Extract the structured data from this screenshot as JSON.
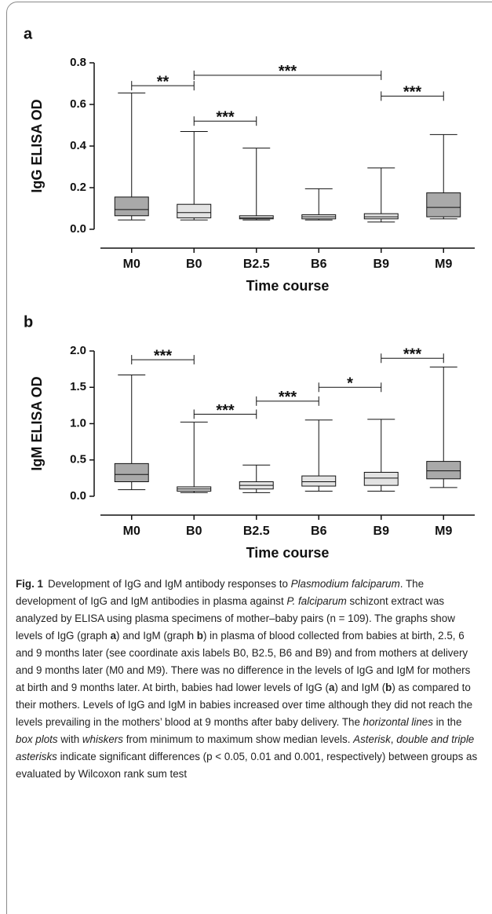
{
  "chart_data": [
    {
      "type": "box",
      "panel": "a",
      "ylabel": "IgG ELISA OD",
      "xlabel": "Time course",
      "categories": [
        "M0",
        "B0",
        "B2.5",
        "B6",
        "B9",
        "M9"
      ],
      "min": [
        0.045,
        0.045,
        0.045,
        0.045,
        0.035,
        0.05
      ],
      "q1": [
        0.065,
        0.055,
        0.05,
        0.05,
        0.05,
        0.06
      ],
      "median": [
        0.095,
        0.08,
        0.055,
        0.06,
        0.06,
        0.105
      ],
      "q3": [
        0.155,
        0.12,
        0.065,
        0.07,
        0.075,
        0.175
      ],
      "max": [
        0.655,
        0.47,
        0.39,
        0.195,
        0.295,
        0.455
      ],
      "colors": [
        "#a9a9a9",
        "#e3e3e3",
        "#e3e3e3",
        "#e3e3e3",
        "#e3e3e3",
        "#a9a9a9"
      ],
      "ylim": [
        0,
        0.8
      ],
      "yticks": [
        {
          "value": 0,
          "label": "0.0"
        },
        0.2,
        0.4,
        0.6,
        0.8
      ],
      "annotations": [
        {
          "label": "**",
          "from": "M0",
          "to": "B0",
          "y": 0.69
        },
        {
          "label": "***",
          "from": "B0",
          "to": "B9",
          "y": 0.74
        },
        {
          "label": "***",
          "from": "B9",
          "to": "M9",
          "y": 0.64
        },
        {
          "label": "***",
          "from": "B0",
          "to": "B2.5",
          "y": 0.52
        }
      ]
    },
    {
      "type": "box",
      "panel": "b",
      "ylabel": "IgM ELISA OD",
      "xlabel": "Time course",
      "categories": [
        "M0",
        "B0",
        "B2.5",
        "B6",
        "B9",
        "M9"
      ],
      "min": [
        0.09,
        0.05,
        0.05,
        0.07,
        0.07,
        0.12
      ],
      "q1": [
        0.2,
        0.07,
        0.1,
        0.14,
        0.15,
        0.24
      ],
      "median": [
        0.3,
        0.1,
        0.15,
        0.2,
        0.25,
        0.35
      ],
      "q3": [
        0.45,
        0.13,
        0.2,
        0.28,
        0.33,
        0.48
      ],
      "max": [
        1.67,
        1.02,
        0.43,
        1.05,
        1.06,
        1.78
      ],
      "colors": [
        "#a9a9a9",
        "#e3e3e3",
        "#e3e3e3",
        "#e3e3e3",
        "#e3e3e3",
        "#a9a9a9"
      ],
      "ylim": [
        0,
        2
      ],
      "yticks": [
        {
          "value": 0,
          "label": "0.0"
        },
        0.5,
        {
          "value": 1,
          "label": "1.0"
        },
        1.5,
        {
          "value": 2,
          "label": "2.0"
        }
      ],
      "annotations": [
        {
          "label": "***",
          "from": "M0",
          "to": "B0",
          "y": 1.88
        },
        {
          "label": "***",
          "from": "B0",
          "to": "B2.5",
          "y": 1.13
        },
        {
          "label": "***",
          "from": "B2.5",
          "to": "B6",
          "y": 1.31
        },
        {
          "label": "*",
          "from": "B6",
          "to": "B9",
          "y": 1.5
        },
        {
          "label": "***",
          "from": "B9",
          "to": "M9",
          "y": 1.9
        }
      ]
    }
  ],
  "caption": {
    "label": "Fig. 1",
    "runs": [
      {
        "text": "Development of IgG and IgM antibody responses to "
      },
      {
        "text": "Plasmodium falciparum",
        "style": "italic"
      },
      {
        "text": ". The development of IgG and IgM antibodies in plasma against "
      },
      {
        "text": "P. falciparum",
        "style": "italic"
      },
      {
        "text": " schizont extract was analyzed by ELISA using plasma specimens of mother–baby pairs (n = 109). The graphs show levels of IgG (graph "
      },
      {
        "text": "a",
        "style": "bold"
      },
      {
        "text": ") and IgM (graph "
      },
      {
        "text": "b",
        "style": "bold"
      },
      {
        "text": ") in plasma of blood collected from babies at birth, 2.5, 6 and 9 months later (see coordinate axis labels B0, B2.5, B6 and B9) and from mothers at delivery and 9 months later (M0 and M9). There was no difference in the levels of IgG and IgM for mothers at birth and 9 months later. At birth, babies had lower levels of IgG ("
      },
      {
        "text": "a",
        "style": "bold"
      },
      {
        "text": ") and IgM ("
      },
      {
        "text": "b",
        "style": "bold"
      },
      {
        "text": ") as compared to their mothers. Levels of IgG and IgM in babies increased over time although they did not reach the levels prevailing in the mothers’ blood at 9 months after baby delivery. The "
      },
      {
        "text": "horizontal lines",
        "style": "italic"
      },
      {
        "text": " in the "
      },
      {
        "text": "box plots",
        "style": "italic"
      },
      {
        "text": " with "
      },
      {
        "text": "whiskers",
        "style": "italic"
      },
      {
        "text": " from minimum to maximum show median levels. "
      },
      {
        "text": "Asterisk",
        "style": "italic"
      },
      {
        "text": ", "
      },
      {
        "text": "double and triple asterisks",
        "style": "italic"
      },
      {
        "text": " indicate significant differences (p < 0.05, 0.01 and 0.001, respectively) between groups as evaluated by Wilcoxon rank sum test"
      }
    ]
  }
}
